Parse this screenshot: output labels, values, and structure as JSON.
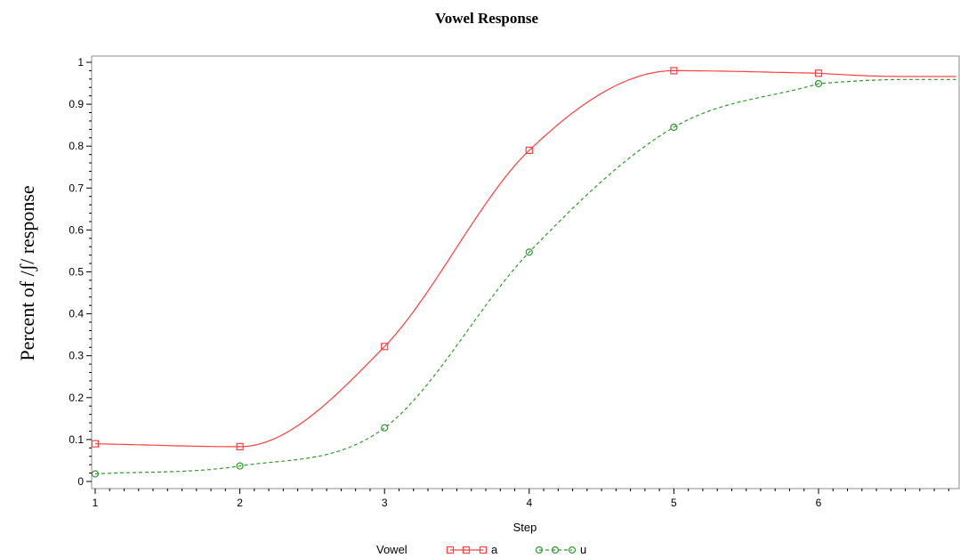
{
  "chart_data": {
    "type": "line",
    "title": "Vowel Response",
    "xlabel": "Step",
    "ylabel": "Percent of /ʃ/ response",
    "x": [
      1,
      2,
      3,
      4,
      5,
      6
    ],
    "xlim": [
      1,
      6.95
    ],
    "ylim": [
      0,
      1
    ],
    "xticks": [
      "1",
      "2",
      "3",
      "4",
      "5",
      "6"
    ],
    "yticks": [
      "0",
      "0.1",
      "0.2",
      "0.3",
      "0.4",
      "0.5",
      "0.6",
      "0.7",
      "0.8",
      "0.9",
      "1"
    ],
    "grid": false,
    "legend": {
      "title": "Vowel",
      "position": "bottom"
    },
    "series": [
      {
        "name": "a",
        "values": [
          0.09,
          0.083,
          0.322,
          0.79,
          0.98,
          0.974
        ],
        "color": "#ff4040",
        "marker": "square",
        "line_style": "solid"
      },
      {
        "name": "u",
        "values": [
          0.018,
          0.037,
          0.128,
          0.547,
          0.845,
          0.949
        ],
        "color": "#2f9a2f",
        "marker": "circle",
        "line_style": "dashed"
      }
    ]
  }
}
